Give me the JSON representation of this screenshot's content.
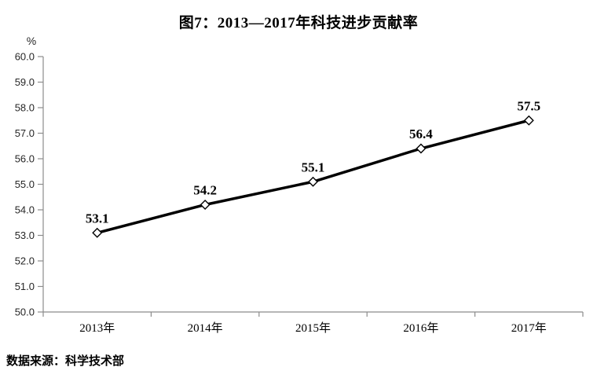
{
  "title": "图7：2013—2017年科技进步贡献率",
  "source_note": "数据来源：科学技术部",
  "chart_data": {
    "type": "line",
    "title": "图7：2013—2017年科技进步贡献率",
    "unit_label": "%",
    "categories": [
      "2013年",
      "2014年",
      "2015年",
      "2016年",
      "2017年"
    ],
    "values": [
      53.1,
      54.2,
      55.1,
      56.4,
      57.5
    ],
    "data_labels": [
      "53.1",
      "54.2",
      "55.1",
      "56.4",
      "57.5"
    ],
    "ylim": [
      50.0,
      60.0
    ],
    "ytick_step": 1.0,
    "ytick_labels": [
      "50.0",
      "51.0",
      "52.0",
      "53.0",
      "54.0",
      "55.0",
      "56.0",
      "57.0",
      "58.0",
      "59.0",
      "60.0"
    ],
    "grid": false,
    "legend": "none",
    "marker": "open-diamond",
    "line_color": "#000000",
    "marker_fill": "#ffffff",
    "marker_stroke": "#000000",
    "axis_color": "#8c8c8c",
    "label_color": "#262626",
    "source_label": "数据来源：科学技术部"
  }
}
